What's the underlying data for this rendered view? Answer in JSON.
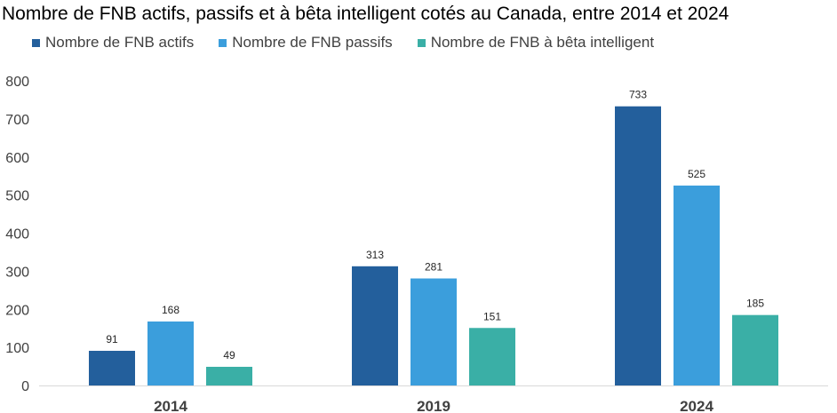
{
  "chart_data": {
    "type": "bar",
    "title": "Nombre de FNB actifs, passifs et à bêta intelligent cotés au Canada, entre 2014 et 2024",
    "categories": [
      "2014",
      "2019",
      "2024"
    ],
    "series": [
      {
        "name": "Nombre de FNB actifs",
        "color": "#235F9C",
        "values": [
          91,
          313,
          733
        ]
      },
      {
        "name": "Nombre de FNB passifs",
        "color": "#3B9EDC",
        "values": [
          168,
          281,
          525
        ]
      },
      {
        "name": "Nombre de FNB à bêta intelligent",
        "color": "#3AAFA6",
        "values": [
          49,
          151,
          185
        ]
      }
    ],
    "ylim": [
      0,
      800
    ],
    "yticks": [
      0,
      100,
      200,
      300,
      400,
      500,
      600,
      700,
      800
    ],
    "xlabel": "",
    "ylabel": "",
    "grid": false,
    "legend_position": "top-left"
  }
}
